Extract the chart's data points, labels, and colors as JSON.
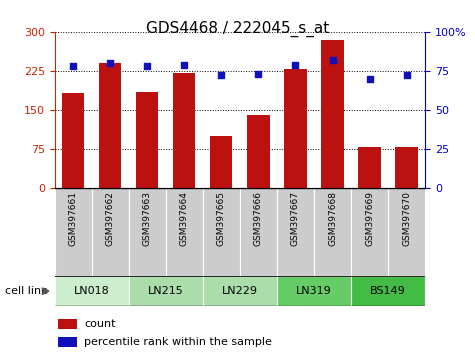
{
  "title": "GDS4468 / 222045_s_at",
  "samples": [
    "GSM397661",
    "GSM397662",
    "GSM397663",
    "GSM397664",
    "GSM397665",
    "GSM397666",
    "GSM397667",
    "GSM397668",
    "GSM397669",
    "GSM397670"
  ],
  "counts": [
    183,
    240,
    185,
    220,
    100,
    140,
    228,
    285,
    78,
    78
  ],
  "percentile_ranks": [
    78,
    80,
    78,
    79,
    72,
    73,
    79,
    82,
    70,
    72
  ],
  "cell_lines": [
    {
      "name": "LN018",
      "start": 0,
      "end": 2,
      "color": "#cceecc"
    },
    {
      "name": "LN215",
      "start": 2,
      "end": 4,
      "color": "#aaddaa"
    },
    {
      "name": "LN229",
      "start": 4,
      "end": 6,
      "color": "#aaddaa"
    },
    {
      "name": "LN319",
      "start": 6,
      "end": 8,
      "color": "#66cc66"
    },
    {
      "name": "BS149",
      "start": 8,
      "end": 10,
      "color": "#44bb44"
    }
  ],
  "ylim_left": [
    0,
    300
  ],
  "ylim_right": [
    0,
    100
  ],
  "yticks_left": [
    0,
    75,
    150,
    225,
    300
  ],
  "yticks_right": [
    0,
    25,
    50,
    75,
    100
  ],
  "bar_color": "#bb1111",
  "dot_color": "#1111bb",
  "bar_width": 0.6,
  "left_axis_color": "#cc2200",
  "right_axis_color": "#0000cc",
  "sample_box_color": "#cccccc",
  "sample_box_edge": "#aaaaaa"
}
